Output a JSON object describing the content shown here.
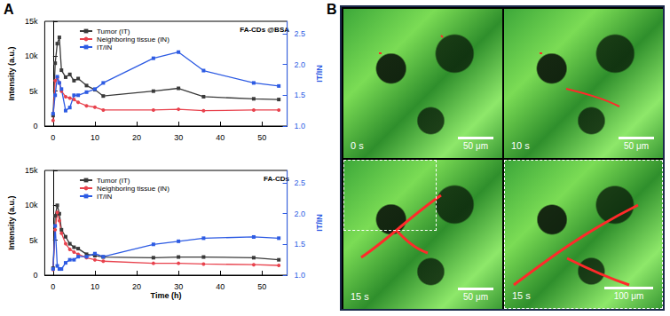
{
  "panel_labels": [
    "A",
    "B"
  ],
  "chart_data": [
    {
      "type": "line",
      "annotation": "FA-CDs @BSA",
      "legend": "upper left",
      "grid": false,
      "ylabel": "Intensity (a.u.)",
      "y2label": "IT/IN",
      "x": [
        0,
        0.5,
        1,
        1.5,
        2,
        3,
        4,
        5,
        6,
        8,
        10,
        12,
        24,
        30,
        36,
        48,
        54
      ],
      "xlim": [
        -2,
        56
      ],
      "xticks": [
        0,
        10,
        20,
        30,
        40,
        50
      ],
      "ylim": [
        0,
        15000
      ],
      "yticks": [
        0,
        {
          "value": 5000,
          "label": "5k"
        },
        {
          "value": 10000,
          "label": "10k"
        },
        {
          "value": 15000,
          "label": "15k"
        }
      ],
      "y2lim": [
        1.0,
        2.7
      ],
      "y2ticks": [
        {
          "value": 1.0,
          "label": "1.0"
        },
        1.5,
        {
          "value": 2.0,
          "label": "2.0"
        },
        2.5
      ],
      "series": [
        {
          "name": "Tumor (IT)",
          "color": "#3a3a3a",
          "marker": "square",
          "values": [
            1500,
            9000,
            11800,
            12700,
            8000,
            7000,
            7400,
            6500,
            6800,
            5800,
            5200,
            4300,
            5000,
            5400,
            4200,
            3900,
            3800
          ]
        },
        {
          "name": "Neighboring tissue (IN)",
          "color": "#e8424d",
          "marker": "circle",
          "values": [
            800,
            6500,
            7000,
            6200,
            5000,
            4200,
            4000,
            3800,
            3400,
            2900,
            2700,
            2300,
            2300,
            2400,
            2200,
            2300,
            2300
          ]
        },
        {
          "name": "IT/IN",
          "color": "#2d5be3",
          "marker": "square",
          "axis": "y2",
          "values": [
            1.2,
            1.5,
            1.8,
            1.7,
            1.6,
            1.25,
            1.3,
            1.5,
            1.5,
            1.55,
            1.6,
            1.7,
            2.1,
            2.2,
            1.9,
            1.7,
            1.65
          ]
        }
      ]
    },
    {
      "type": "line",
      "annotation": "FA-CDs",
      "legend": "upper left",
      "grid": false,
      "xlabel": "Time (h)",
      "ylabel": "Intensity (a.u.)",
      "y2label": "IT/IN",
      "x": [
        0,
        0.5,
        1,
        1.5,
        2,
        3,
        4,
        5,
        6,
        8,
        10,
        12,
        24,
        30,
        36,
        48,
        54
      ],
      "xlim": [
        -2,
        56
      ],
      "xticks": [
        0,
        10,
        20,
        30,
        40,
        50
      ],
      "ylim": [
        0,
        15000
      ],
      "yticks": [
        0,
        {
          "value": 5000,
          "label": "5k"
        },
        {
          "value": 10000,
          "label": "10k"
        },
        {
          "value": 15000,
          "label": "15k"
        }
      ],
      "y2lim": [
        1.0,
        2.7
      ],
      "y2ticks": [
        {
          "value": 1.0,
          "label": "1.0"
        },
        1.5,
        {
          "value": 2.0,
          "label": "2.0"
        },
        2.5
      ],
      "series": [
        {
          "name": "Tumor (IT)",
          "color": "#3a3a3a",
          "marker": "square",
          "values": [
            1000,
            8500,
            10000,
            8800,
            6500,
            5500,
            4500,
            4000,
            3800,
            3000,
            2800,
            2600,
            2500,
            2600,
            2600,
            2500,
            2200
          ]
        },
        {
          "name": "Neighboring tissue (IN)",
          "color": "#e8424d",
          "marker": "circle",
          "values": [
            800,
            6500,
            9000,
            7800,
            6000,
            4500,
            3700,
            3300,
            3000,
            2500,
            2200,
            2000,
            1700,
            1700,
            1600,
            1500,
            1400
          ]
        },
        {
          "name": "IT/IN",
          "color": "#2d5be3",
          "marker": "square",
          "axis": "y2",
          "values": [
            1.1,
            1.8,
            1.15,
            1.1,
            1.1,
            1.2,
            1.25,
            1.25,
            1.3,
            1.3,
            1.35,
            1.3,
            1.5,
            1.55,
            1.6,
            1.62,
            1.6
          ]
        }
      ]
    }
  ],
  "images": [
    {
      "time": "0 s",
      "scale_bar": "50 μm"
    },
    {
      "time": "10 s",
      "scale_bar": "50 μm"
    },
    {
      "time": "15 s",
      "scale_bar": "50 μm"
    },
    {
      "time": "15 s",
      "scale_bar": "100 μm"
    }
  ]
}
